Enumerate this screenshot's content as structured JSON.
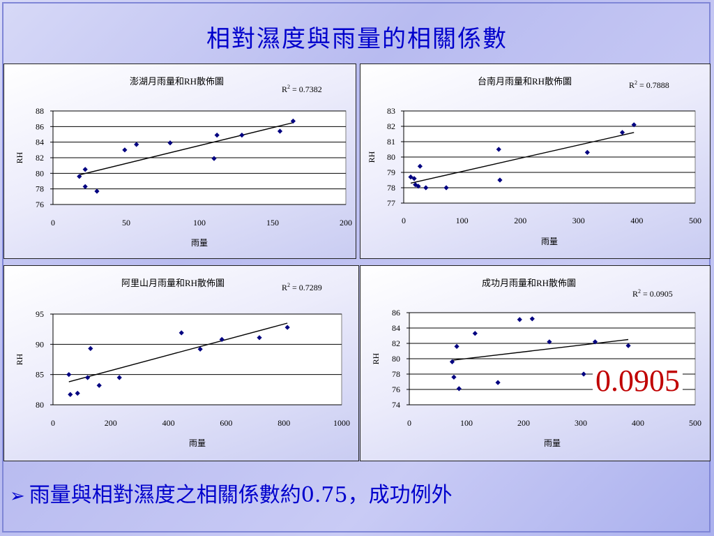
{
  "slide": {
    "title": "相對濕度與雨量的相關係數",
    "bullet_icon": "arrow-bullet-icon",
    "bullet_text": "雨量與相對濕度之相關係數約0.75，成功例外",
    "highlight_value": "0.0905",
    "highlight_color": "#c00000",
    "title_color": "#0000cc"
  },
  "chart_data": [
    {
      "type": "scatter",
      "title": "澎湖月雨量和RH散佈圖",
      "r2_label": "R",
      "r2_value": " = 0.7382",
      "xlabel": "雨量",
      "ylabel": "RH",
      "xlim": [
        0,
        200
      ],
      "ylim": [
        76,
        88
      ],
      "xticks": [
        0,
        50,
        100,
        150,
        200
      ],
      "yticks": [
        76,
        78,
        80,
        82,
        84,
        86,
        88
      ],
      "grid": true,
      "marker_color": "#000080",
      "points": [
        [
          18,
          79.6
        ],
        [
          22,
          80.5
        ],
        [
          22,
          78.3
        ],
        [
          30,
          77.7
        ],
        [
          49,
          83.0
        ],
        [
          57,
          83.7
        ],
        [
          80,
          83.9
        ],
        [
          110,
          81.9
        ],
        [
          112,
          84.9
        ],
        [
          129,
          84.9
        ],
        [
          155,
          85.4
        ],
        [
          164,
          86.7
        ]
      ],
      "trendline": [
        [
          18,
          79.8
        ],
        [
          164,
          86.5
        ]
      ]
    },
    {
      "type": "scatter",
      "title": "台南月雨量和RH散佈圖",
      "r2_label": "R",
      "r2_value": " = 0.7888",
      "xlabel": "雨量",
      "ylabel": "RH",
      "xlim": [
        0,
        500
      ],
      "ylim": [
        77,
        83
      ],
      "xticks": [
        0,
        100,
        200,
        300,
        400,
        500
      ],
      "yticks": [
        77,
        78,
        79,
        80,
        81,
        82,
        83
      ],
      "grid": true,
      "marker_color": "#000080",
      "points": [
        [
          12,
          78.7
        ],
        [
          18,
          78.6
        ],
        [
          20,
          78.2
        ],
        [
          25,
          78.1
        ],
        [
          28,
          79.4
        ],
        [
          38,
          78.0
        ],
        [
          73,
          78.0
        ],
        [
          163,
          80.5
        ],
        [
          165,
          78.5
        ],
        [
          315,
          80.3
        ],
        [
          375,
          81.6
        ],
        [
          395,
          82.1
        ]
      ],
      "trendline": [
        [
          12,
          78.3
        ],
        [
          395,
          81.6
        ]
      ]
    },
    {
      "type": "scatter",
      "title": "阿里山月雨量和RH散佈圖",
      "r2_label": "R",
      "r2_value": " = 0.7289",
      "xlabel": "雨量",
      "ylabel": "RH",
      "xlim": [
        0,
        1000
      ],
      "ylim": [
        80,
        95
      ],
      "xticks": [
        0,
        200,
        400,
        600,
        800,
        1000
      ],
      "yticks": [
        80,
        85,
        90,
        95
      ],
      "grid": true,
      "marker_color": "#000080",
      "points": [
        [
          55,
          85.0
        ],
        [
          60,
          81.7
        ],
        [
          85,
          81.9
        ],
        [
          120,
          84.5
        ],
        [
          130,
          89.3
        ],
        [
          160,
          83.2
        ],
        [
          230,
          84.5
        ],
        [
          445,
          91.9
        ],
        [
          510,
          89.2
        ],
        [
          585,
          90.8
        ],
        [
          715,
          91.1
        ],
        [
          812,
          92.8
        ]
      ],
      "trendline": [
        [
          55,
          83.8
        ],
        [
          812,
          93.5
        ]
      ]
    },
    {
      "type": "scatter",
      "title": "成功月雨量和RH散佈圖",
      "r2_label": "R",
      "r2_value": " = 0.0905",
      "xlabel": "雨量",
      "ylabel": "RH",
      "xlim": [
        0,
        500
      ],
      "ylim": [
        74,
        86
      ],
      "xticks": [
        0,
        100,
        200,
        300,
        400,
        500
      ],
      "yticks": [
        74,
        76,
        78,
        80,
        82,
        84,
        86
      ],
      "grid": true,
      "marker_color": "#000080",
      "points": [
        [
          75,
          79.6
        ],
        [
          78,
          77.6
        ],
        [
          83,
          81.6
        ],
        [
          87,
          76.1
        ],
        [
          115,
          83.3
        ],
        [
          155,
          76.9
        ],
        [
          193,
          85.1
        ],
        [
          215,
          85.2
        ],
        [
          245,
          82.2
        ],
        [
          305,
          78.0
        ],
        [
          325,
          82.2
        ],
        [
          383,
          81.7
        ]
      ],
      "trendline": [
        [
          75,
          79.8
        ],
        [
          383,
          82.5
        ]
      ]
    }
  ]
}
